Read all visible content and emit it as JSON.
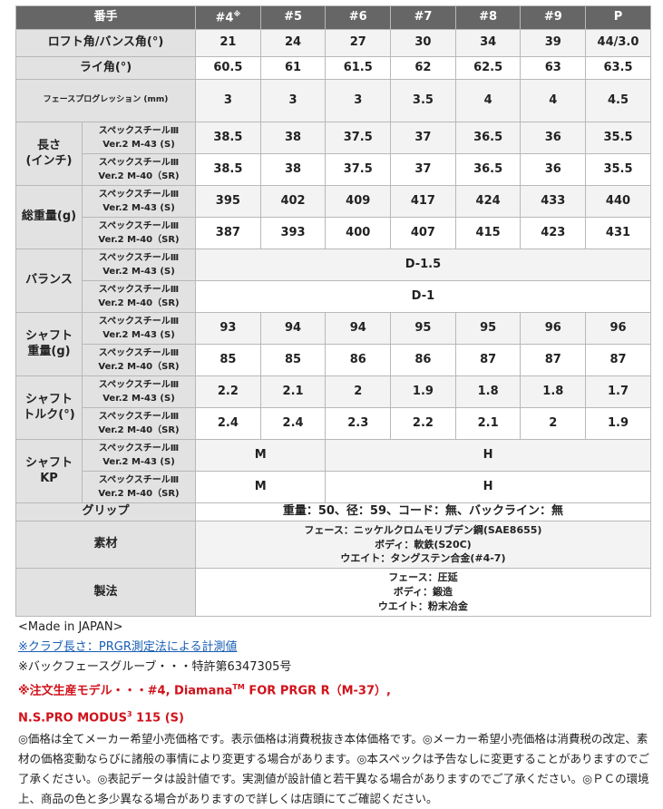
{
  "header": {
    "label": "番手",
    "cols": [
      "#4",
      "#5",
      "#6",
      "#7",
      "#8",
      "#9",
      "P"
    ],
    "col0_mark": "※"
  },
  "simple_rows": [
    {
      "label": "ロフト角/バンス角(°)",
      "values": [
        "21",
        "24",
        "27",
        "30",
        "34",
        "39",
        "44/3.0"
      ]
    },
    {
      "label": "ライ角(°)",
      "values": [
        "60.5",
        "61",
        "61.5",
        "62",
        "62.5",
        "63",
        "63.5"
      ]
    },
    {
      "label": "フェースプログレッション (mm)",
      "values": [
        "3",
        "3",
        "3",
        "3.5",
        "4",
        "4",
        "4.5"
      ],
      "small": true
    }
  ],
  "shaft_lines": {
    "line1": "スペックスチールⅢ",
    "s": "Ver.2 M-43 (S)",
    "sr": "Ver.2 M-40（SR)"
  },
  "group_rows": [
    {
      "label": "長さ\n(インチ)",
      "s": [
        "38.5",
        "38",
        "37.5",
        "37",
        "36.5",
        "36",
        "35.5"
      ],
      "sr": [
        "38.5",
        "38",
        "37.5",
        "37",
        "36.5",
        "36",
        "35.5"
      ]
    },
    {
      "label": "総重量(g)",
      "s": [
        "395",
        "402",
        "409",
        "417",
        "424",
        "433",
        "440"
      ],
      "sr": [
        "387",
        "393",
        "400",
        "407",
        "415",
        "423",
        "431"
      ]
    },
    {
      "label": "バランス",
      "s_span": "D-1.5",
      "sr_span": "D-1"
    },
    {
      "label": "シャフト\n重量(g)",
      "s": [
        "93",
        "94",
        "94",
        "95",
        "95",
        "96",
        "96"
      ],
      "sr": [
        "85",
        "85",
        "86",
        "86",
        "87",
        "87",
        "87"
      ]
    },
    {
      "label": "シャフト\nトルク(°)",
      "s": [
        "2.2",
        "2.1",
        "2",
        "1.9",
        "1.8",
        "1.8",
        "1.7"
      ],
      "sr": [
        "2.4",
        "2.4",
        "2.3",
        "2.2",
        "2.1",
        "2",
        "1.9"
      ]
    },
    {
      "label": "シャフト\nKP",
      "s_split": [
        "M",
        "H"
      ],
      "sr_split": [
        "M",
        "H"
      ]
    }
  ],
  "grip": {
    "label": "グリップ",
    "value": "重量：50、径：59、コード：無、バックライン：無"
  },
  "material": {
    "label": "素材",
    "lines": [
      "フェース：ニッケルクロムモリブデン鋼(SAE8655)",
      "ボディ：軟鉄(S20C)",
      "ウエイト：タングステン合金(#4-7)"
    ]
  },
  "method": {
    "label": "製法",
    "lines": [
      "フェース：圧延",
      "ボディ：鍛造",
      "ウエイト：粉末冶金"
    ]
  },
  "notes": {
    "made_in": "<Made in JAPAN>",
    "link": "※クラブ長さ：PRGR測定法による計測値",
    "patent": "※バックフェースグルーブ・・・特許第6347305号",
    "order_a": "※注文生産モデル・・・#4, Diamana",
    "tm": "TM",
    "order_b": " FOR PRGR R（M-37）,",
    "modus_a": "N.S.PRO MODUS",
    "modus_sup": "3",
    "modus_b": " 115 (S)",
    "disclaimer": "◎価格は全てメーカー希望小売価格です。表示価格は消費税抜き本体価格です。◎メーカー希望小売価格は消費税の改定、素材の価格変動ならびに諸般の事情により変更する場合があります。◎本スペックは予告なしに変更することがありますのでご了承ください。◎表記データは設計値です。実測値が設計値と若干異なる場合がありますのでご了承ください。◎ＰＣの環境上、商品の色と多少異なる場合がありますので詳しくは店頭にてご確認ください。"
  },
  "colors": {
    "header_bg": "#666666",
    "label_bg": "#e2e2e2",
    "link": "#1a5fb4",
    "red": "#d0121b"
  }
}
